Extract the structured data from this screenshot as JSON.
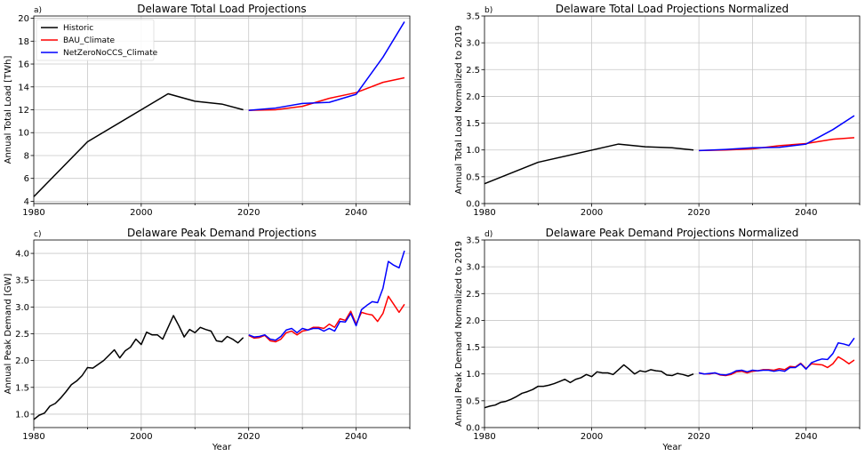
{
  "chart_data": [
    {
      "type": "line",
      "panel_label": "a)",
      "title": "Delaware Total Load Projections",
      "xlabel": "",
      "ylabel": "Annual Total Load [TWh]",
      "xlim": [
        1980,
        2050
      ],
      "ylim": [
        3.8,
        20.2
      ],
      "xticks": [
        1980,
        2000,
        2020,
        2040
      ],
      "yticks": [
        4,
        6,
        8,
        10,
        12,
        14,
        16,
        18,
        20
      ],
      "ytick_decimals": 0,
      "grid": true,
      "legend": "top-left",
      "series": [
        {
          "name": "Historic",
          "color": "#000000",
          "x": [
            1980,
            1990,
            2005,
            2010,
            2015,
            2019
          ],
          "y": [
            4.4,
            9.2,
            13.4,
            12.75,
            12.5,
            12.0
          ]
        },
        {
          "name": "BAU_Climate",
          "color": "#ff0000",
          "x": [
            2020,
            2025,
            2030,
            2035,
            2040,
            2045,
            2049
          ],
          "y": [
            11.95,
            12.0,
            12.3,
            13.0,
            13.5,
            14.4,
            14.8
          ]
        },
        {
          "name": "NetZeroNoCCS_Climate",
          "color": "#0000ff",
          "x": [
            2020,
            2025,
            2030,
            2035,
            2040,
            2045,
            2049
          ],
          "y": [
            11.95,
            12.15,
            12.55,
            12.65,
            13.35,
            16.6,
            19.7
          ]
        }
      ]
    },
    {
      "type": "line",
      "panel_label": "b)",
      "title": "Delaware Total Load Projections Normalized",
      "xlabel": "",
      "ylabel": "Annual Total Load Normalized to 2019",
      "xlim": [
        1980,
        2050
      ],
      "ylim": [
        0,
        3.5
      ],
      "xticks": [
        1980,
        2000,
        2020,
        2040
      ],
      "yticks": [
        0.0,
        0.5,
        1.0,
        1.5,
        2.0,
        2.5,
        3.0,
        3.5
      ],
      "ytick_decimals": 1,
      "grid": true,
      "series": [
        {
          "color": "#000000",
          "x": [
            1980,
            1990,
            2005,
            2010,
            2015,
            2019
          ],
          "y": [
            0.37,
            0.77,
            1.11,
            1.06,
            1.04,
            1.0
          ]
        },
        {
          "color": "#ff0000",
          "x": [
            2020,
            2025,
            2030,
            2035,
            2040,
            2045,
            2049
          ],
          "y": [
            0.99,
            1.0,
            1.02,
            1.08,
            1.12,
            1.2,
            1.23
          ]
        },
        {
          "color": "#0000ff",
          "x": [
            2020,
            2025,
            2030,
            2035,
            2040,
            2045,
            2049
          ],
          "y": [
            0.99,
            1.01,
            1.04,
            1.05,
            1.11,
            1.38,
            1.64
          ]
        }
      ]
    },
    {
      "type": "line",
      "panel_label": "c)",
      "title": "Delaware Peak Demand Projections",
      "xlabel": "Year",
      "ylabel": "Annual Peak Demand [GW]",
      "xlim": [
        1980,
        2050
      ],
      "ylim": [
        0.75,
        4.25
      ],
      "xticks": [
        1980,
        2000,
        2020,
        2040
      ],
      "yticks": [
        1.0,
        1.5,
        2.0,
        2.5,
        3.0,
        3.5,
        4.0
      ],
      "ytick_decimals": 1,
      "grid": true,
      "series": [
        {
          "color": "#000000",
          "x": [
            1980,
            1981,
            1982,
            1983,
            1984,
            1985,
            1986,
            1987,
            1988,
            1989,
            1990,
            1991,
            1992,
            1993,
            1994,
            1995,
            1996,
            1997,
            1998,
            1999,
            2000,
            2001,
            2002,
            2003,
            2004,
            2005,
            2006,
            2007,
            2008,
            2009,
            2010,
            2011,
            2012,
            2013,
            2014,
            2015,
            2016,
            2017,
            2018,
            2019
          ],
          "y": [
            0.9,
            0.98,
            1.02,
            1.15,
            1.2,
            1.3,
            1.42,
            1.55,
            1.62,
            1.72,
            1.87,
            1.86,
            1.93,
            2.0,
            2.1,
            2.2,
            2.05,
            2.18,
            2.25,
            2.4,
            2.3,
            2.53,
            2.48,
            2.48,
            2.4,
            2.62,
            2.84,
            2.65,
            2.44,
            2.58,
            2.52,
            2.62,
            2.58,
            2.55,
            2.37,
            2.35,
            2.45,
            2.4,
            2.33,
            2.43
          ]
        },
        {
          "color": "#ff0000",
          "x": [
            2020,
            2021,
            2022,
            2023,
            2024,
            2025,
            2026,
            2027,
            2028,
            2029,
            2030,
            2031,
            2032,
            2033,
            2034,
            2035,
            2036,
            2037,
            2038,
            2039,
            2040,
            2041,
            2042,
            2043,
            2044,
            2045,
            2046,
            2047,
            2048,
            2049
          ],
          "y": [
            2.47,
            2.42,
            2.43,
            2.47,
            2.37,
            2.35,
            2.4,
            2.52,
            2.55,
            2.48,
            2.55,
            2.57,
            2.62,
            2.62,
            2.6,
            2.68,
            2.62,
            2.78,
            2.75,
            2.92,
            2.68,
            2.9,
            2.87,
            2.85,
            2.73,
            2.88,
            3.2,
            3.05,
            2.9,
            3.05
          ]
        },
        {
          "color": "#0000ff",
          "x": [
            2020,
            2021,
            2022,
            2023,
            2024,
            2025,
            2026,
            2027,
            2028,
            2029,
            2030,
            2031,
            2032,
            2033,
            2034,
            2035,
            2036,
            2037,
            2038,
            2039,
            2040,
            2041,
            2042,
            2043,
            2044,
            2045,
            2046,
            2047,
            2048,
            2049
          ],
          "y": [
            2.48,
            2.44,
            2.45,
            2.48,
            2.4,
            2.38,
            2.45,
            2.57,
            2.6,
            2.52,
            2.6,
            2.57,
            2.6,
            2.6,
            2.55,
            2.6,
            2.55,
            2.73,
            2.72,
            2.88,
            2.65,
            2.95,
            3.03,
            3.1,
            3.08,
            3.35,
            3.85,
            3.78,
            3.73,
            4.05
          ]
        }
      ]
    },
    {
      "type": "line",
      "panel_label": "d)",
      "title": "Delaware Peak Demand Projections Normalized",
      "xlabel": "Year",
      "ylabel": "Annual Peak Demand Normalized to 2019",
      "xlim": [
        1980,
        2050
      ],
      "ylim": [
        0,
        3.5
      ],
      "xticks": [
        1980,
        2000,
        2020,
        2040
      ],
      "yticks": [
        0.0,
        0.5,
        1.0,
        1.5,
        2.0,
        2.5,
        3.0,
        3.5
      ],
      "ytick_decimals": 1,
      "grid": true,
      "series": [
        {
          "color": "#000000",
          "x": [
            1980,
            1981,
            1982,
            1983,
            1984,
            1985,
            1986,
            1987,
            1988,
            1989,
            1990,
            1991,
            1992,
            1993,
            1994,
            1995,
            1996,
            1997,
            1998,
            1999,
            2000,
            2001,
            2002,
            2003,
            2004,
            2005,
            2006,
            2007,
            2008,
            2009,
            2010,
            2011,
            2012,
            2013,
            2014,
            2015,
            2016,
            2017,
            2018,
            2019
          ],
          "y": [
            0.37,
            0.4,
            0.42,
            0.47,
            0.49,
            0.53,
            0.58,
            0.64,
            0.67,
            0.71,
            0.77,
            0.77,
            0.79,
            0.82,
            0.86,
            0.9,
            0.84,
            0.9,
            0.93,
            0.99,
            0.95,
            1.04,
            1.02,
            1.02,
            0.99,
            1.08,
            1.17,
            1.09,
            1.0,
            1.06,
            1.04,
            1.08,
            1.06,
            1.05,
            0.98,
            0.97,
            1.01,
            0.99,
            0.96,
            1.0
          ]
        },
        {
          "color": "#ff0000",
          "x": [
            2020,
            2021,
            2022,
            2023,
            2024,
            2025,
            2026,
            2027,
            2028,
            2029,
            2030,
            2031,
            2032,
            2033,
            2034,
            2035,
            2036,
            2037,
            2038,
            2039,
            2040,
            2041,
            2042,
            2043,
            2044,
            2045,
            2046,
            2047,
            2048,
            2049
          ],
          "y": [
            1.02,
            1.0,
            1.0,
            1.02,
            0.98,
            0.97,
            0.99,
            1.04,
            1.05,
            1.02,
            1.05,
            1.06,
            1.08,
            1.08,
            1.07,
            1.1,
            1.08,
            1.14,
            1.13,
            1.2,
            1.1,
            1.19,
            1.18,
            1.17,
            1.12,
            1.19,
            1.32,
            1.26,
            1.19,
            1.26
          ]
        },
        {
          "color": "#0000ff",
          "x": [
            2020,
            2021,
            2022,
            2023,
            2024,
            2025,
            2026,
            2027,
            2028,
            2029,
            2030,
            2031,
            2032,
            2033,
            2034,
            2035,
            2036,
            2037,
            2038,
            2039,
            2040,
            2041,
            2042,
            2043,
            2044,
            2045,
            2046,
            2047,
            2048,
            2049
          ],
          "y": [
            1.02,
            1.0,
            1.01,
            1.02,
            0.99,
            0.98,
            1.01,
            1.06,
            1.07,
            1.04,
            1.07,
            1.06,
            1.07,
            1.07,
            1.05,
            1.07,
            1.05,
            1.12,
            1.12,
            1.19,
            1.09,
            1.21,
            1.25,
            1.28,
            1.27,
            1.38,
            1.58,
            1.56,
            1.53,
            1.67
          ]
        }
      ]
    }
  ]
}
